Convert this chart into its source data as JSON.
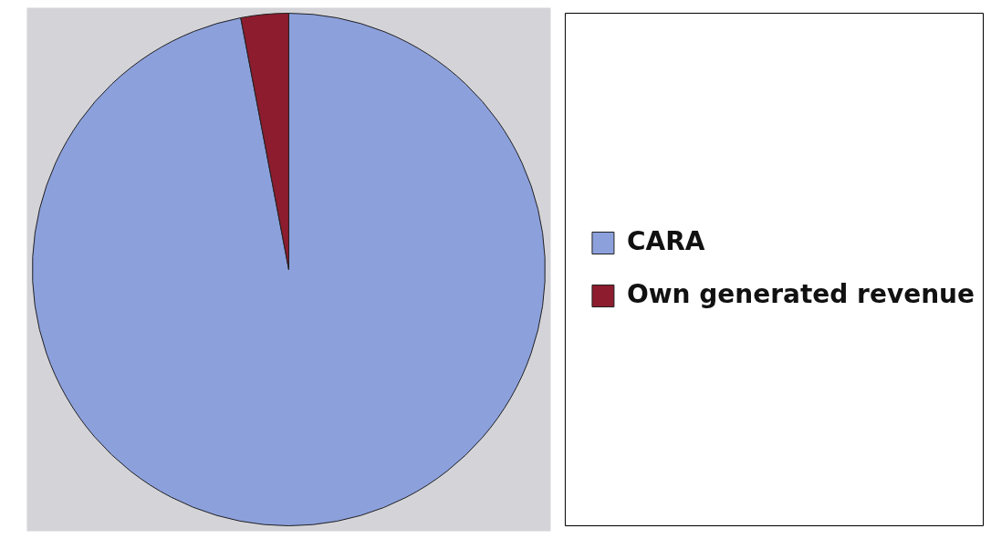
{
  "chart_data": {
    "type": "pie",
    "categories": [
      "CARA",
      "Own generated revenue"
    ],
    "values": [
      97,
      3
    ],
    "colors": [
      "#8ca0dc",
      "#8c1c2e"
    ],
    "legend": "right"
  }
}
